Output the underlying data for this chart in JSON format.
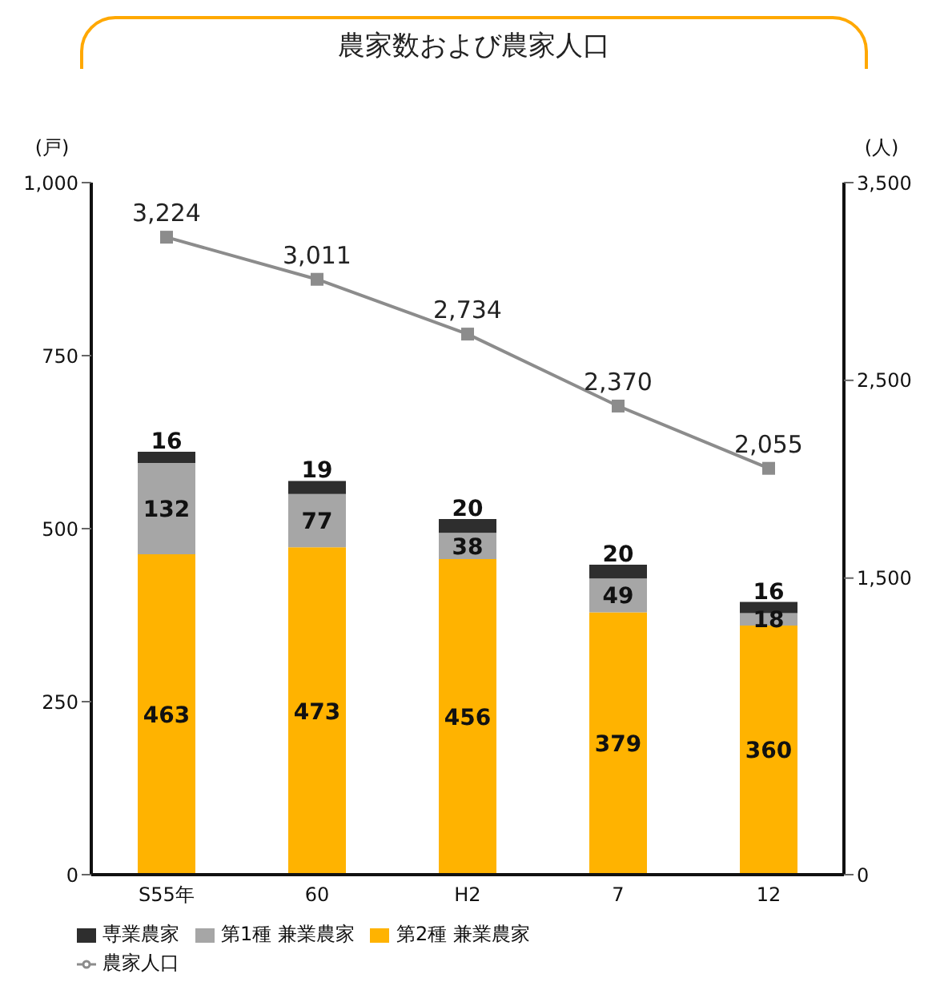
{
  "chart_data": {
    "type": "bar",
    "title": "農家数および農家人口",
    "categories": [
      "S55年",
      "60",
      "H2",
      "7",
      "12"
    ],
    "series": [
      {
        "name": "第2種 兼業農家",
        "color": "#ffb300",
        "values": [
          463,
          473,
          456,
          379,
          360
        ]
      },
      {
        "name": "第1種 兼業農家",
        "color": "#a6a6a6",
        "values": [
          132,
          77,
          38,
          49,
          18
        ]
      },
      {
        "name": "専業農家",
        "color": "#2e2e2e",
        "values": [
          16,
          19,
          20,
          20,
          16
        ]
      },
      {
        "name": "農家人口",
        "type": "line",
        "axis": "y2",
        "color": "#8c8c8c",
        "values": [
          3224,
          3011,
          2734,
          2370,
          2055
        ],
        "value_labels": [
          "3,224",
          "3,011",
          "2,734",
          "2,370",
          "2,055"
        ]
      }
    ],
    "stacked": true,
    "ylabel": "(戸)",
    "y2label": "(人)",
    "ylim": [
      0,
      1000
    ],
    "yticks": [
      0,
      250,
      500,
      750,
      {
        "value": 1000,
        "label": "1,000"
      }
    ],
    "y2lim": [
      0,
      3500
    ],
    "y2ticks": [
      0,
      {
        "value": 1500,
        "label": "1,500"
      },
      {
        "value": 2500,
        "label": "2,500"
      },
      {
        "value": 3500,
        "label": "3,500"
      }
    ],
    "data_labels": true,
    "legend": "bottom",
    "marker": "square",
    "line_style": "solid"
  }
}
